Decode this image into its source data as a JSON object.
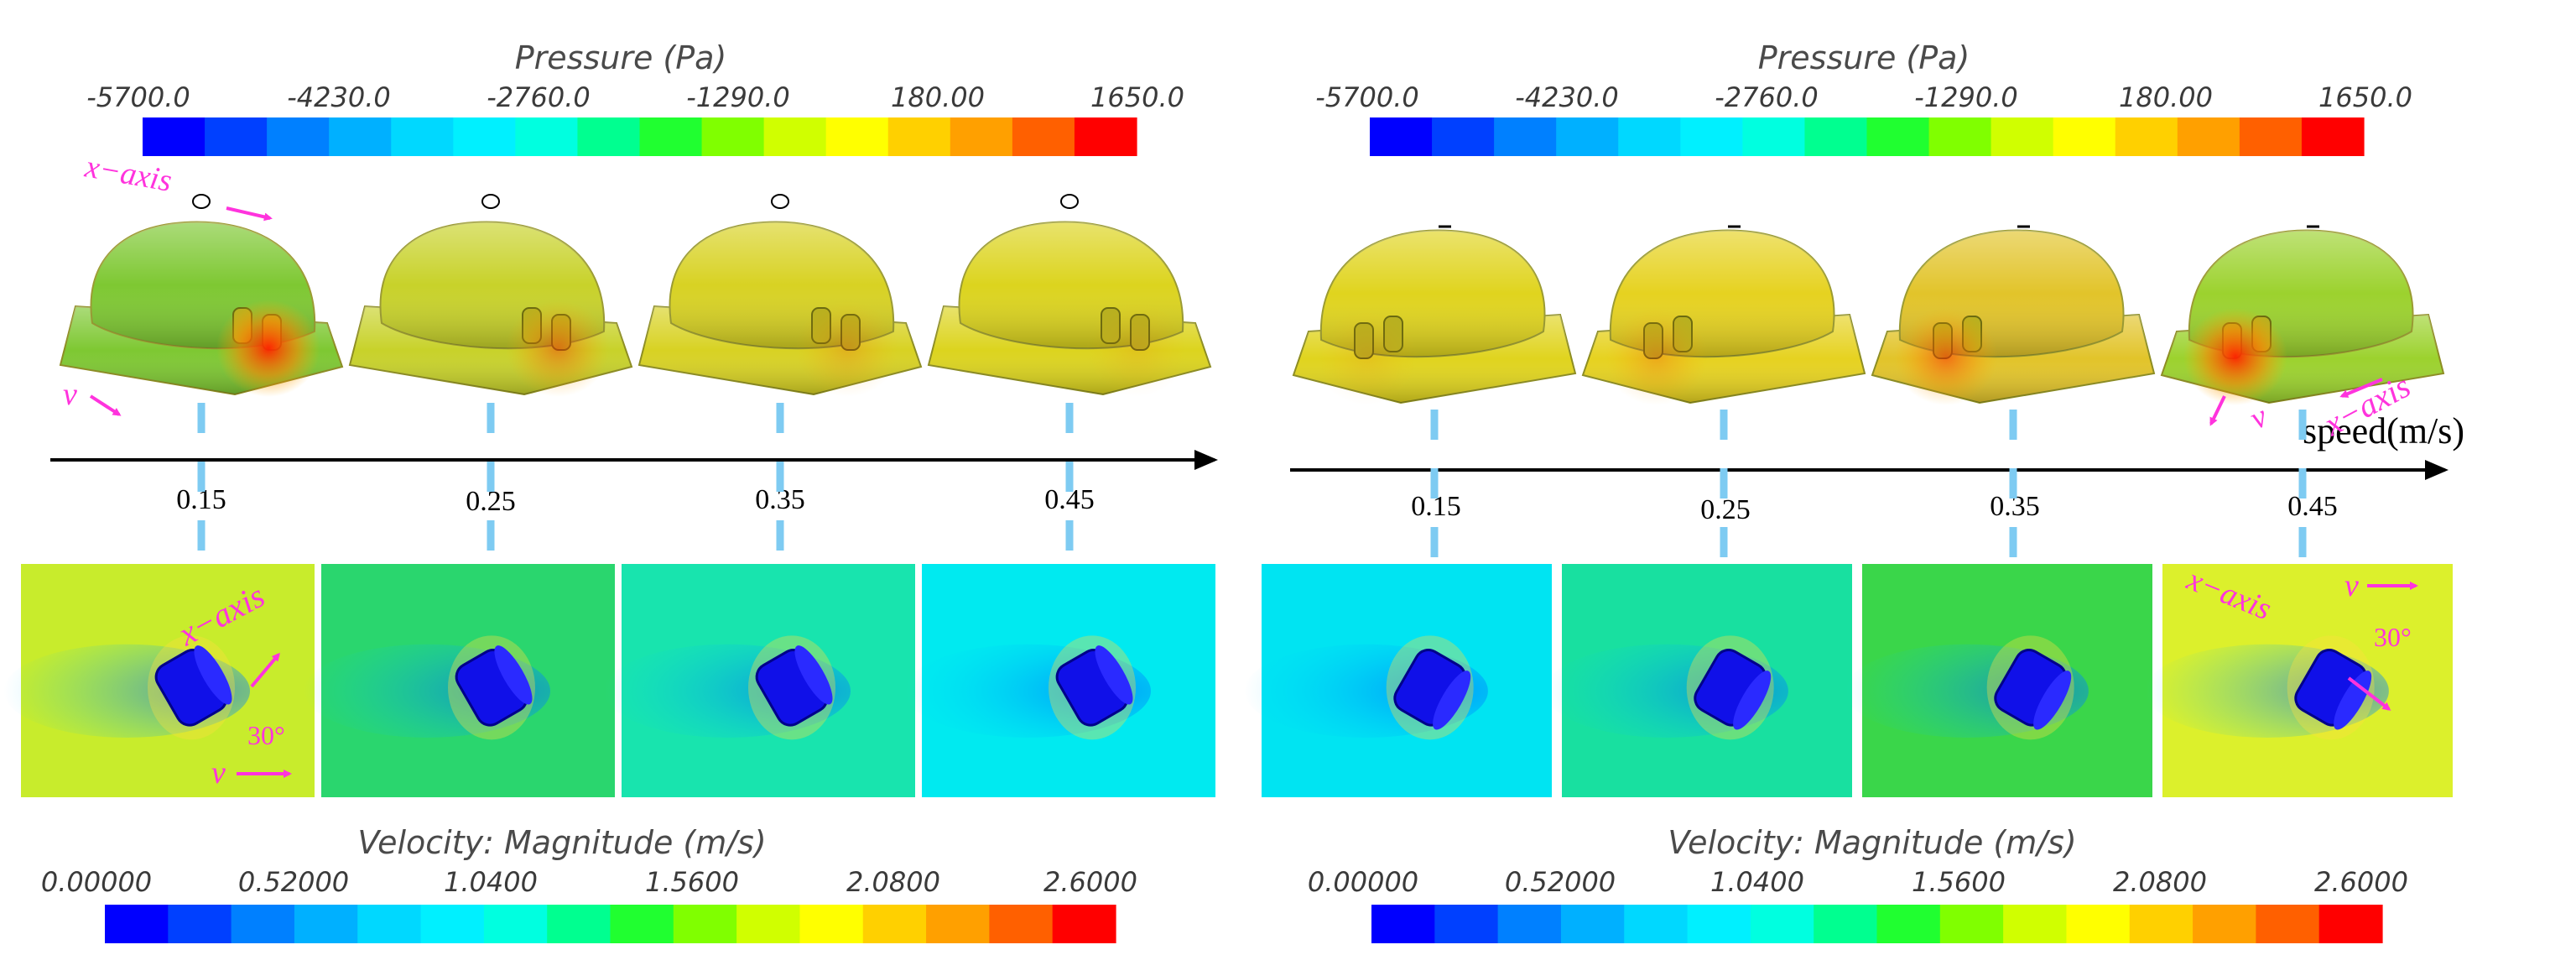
{
  "pressure_legend": {
    "title": "Pressure (Pa)",
    "ticks": [
      "-5700.0",
      "-4230.0",
      "-2760.0",
      "-1290.0",
      "180.00",
      "1650.0"
    ]
  },
  "velocity_legend": {
    "title": "Velocity: Magnitude (m/s)",
    "ticks": [
      "0.00000",
      "0.52000",
      "1.0400",
      "1.5600",
      "2.0800",
      "2.6000"
    ]
  },
  "colormap": [
    "#0000ff",
    "#0040ff",
    "#0080ff",
    "#00b0ff",
    "#00d8ff",
    "#00f0ff",
    "#00ffe0",
    "#00ff90",
    "#20ff30",
    "#80ff00",
    "#d0ff00",
    "#ffff00",
    "#ffd000",
    "#ffa000",
    "#ff6000",
    "#ff0000"
  ],
  "speed_axis": {
    "label": "speed(m/s)",
    "values": [
      "0.15",
      "0.25",
      "0.35",
      "0.45"
    ]
  },
  "annotations": {
    "x_axis": "x−axis",
    "v": "v",
    "angle": "30°"
  },
  "panels": {
    "left_case_surface_colors": [
      "#7ec832",
      "#c8d22a",
      "#d8d223",
      "#dcd41e"
    ],
    "left_case_field_colors": [
      "#c8ec2c",
      "#2ad66e",
      "#18e4ae",
      "#00eaf0"
    ],
    "right_case_surface_colors": [
      "#e0d41e",
      "#e6d220",
      "#e2c42a",
      "#9cd22e"
    ],
    "right_case_field_colors": [
      "#00e4f2",
      "#18e0a0",
      "#3ad64a",
      "#dcf02c"
    ]
  }
}
